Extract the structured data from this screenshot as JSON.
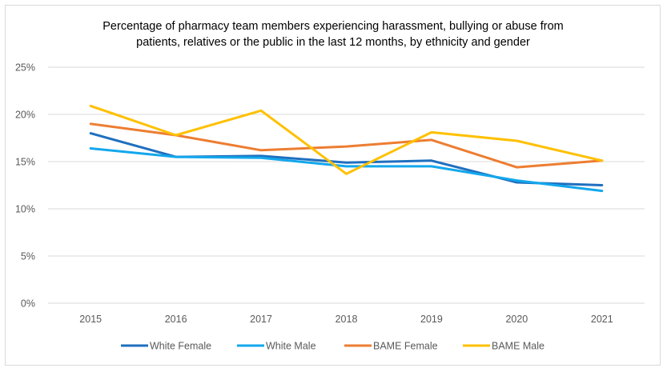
{
  "chart_data": {
    "type": "line",
    "title_lines": [
      "Percentage of pharmacy team members experiencing harassment, bullying or abuse from",
      "patients, relatives or the public in the last 12 months, by ethnicity and gender"
    ],
    "categories": [
      "2015",
      "2016",
      "2017",
      "2018",
      "2019",
      "2020",
      "2021"
    ],
    "ylim": [
      0,
      25
    ],
    "yticks": [
      0,
      5,
      10,
      15,
      20,
      25
    ],
    "ytick_labels": [
      "0%",
      "5%",
      "10%",
      "15%",
      "20%",
      "25%"
    ],
    "grid": true,
    "legend_position": "bottom",
    "series": [
      {
        "name": "White Female",
        "color": "#1f6fbf",
        "values": [
          18.0,
          15.5,
          15.6,
          14.9,
          15.1,
          12.8,
          12.5
        ]
      },
      {
        "name": "White Male",
        "color": "#13a7ec",
        "values": [
          16.4,
          15.5,
          15.4,
          14.5,
          14.5,
          13.0,
          11.9
        ]
      },
      {
        "name": "BAME Female",
        "color": "#ed7d31",
        "values": [
          19.0,
          17.8,
          16.2,
          16.6,
          17.3,
          14.4,
          15.1
        ]
      },
      {
        "name": "BAME Male",
        "color": "#ffc000",
        "values": [
          20.9,
          17.8,
          20.4,
          13.7,
          18.1,
          17.2,
          15.1
        ]
      }
    ]
  }
}
